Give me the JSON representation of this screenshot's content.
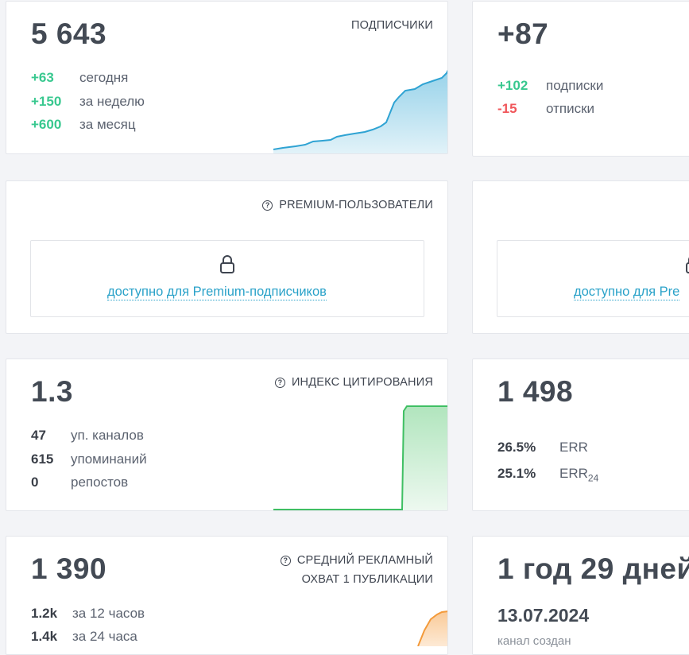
{
  "subscribers": {
    "value": "5 643",
    "title": "ПОДПИСЧИКИ",
    "rows": [
      {
        "value": "+63",
        "label": "сегодня"
      },
      {
        "value": "+150",
        "label": "за неделю"
      },
      {
        "value": "+600",
        "label": "за месяц"
      }
    ]
  },
  "daily_change": {
    "value": "+87",
    "rows": [
      {
        "value": "+102",
        "label": "подписки"
      },
      {
        "value": "-15",
        "label": "отписки"
      }
    ]
  },
  "premium_users": {
    "title": "PREMIUM-ПОЛЬЗОВАТЕЛИ",
    "locked_link": "доступно для Premium-подписчиков",
    "locked_link_partial": "доступно для Pre"
  },
  "citation": {
    "value": "1.3",
    "title": "ИНДЕКС ЦИТИРОВАНИЯ",
    "rows": [
      {
        "value": "47",
        "label": "уп. каналов"
      },
      {
        "value": "615",
        "label": "упоминаний"
      },
      {
        "value": "0",
        "label": "репостов"
      }
    ]
  },
  "engagement": {
    "value": "1 498",
    "rows": [
      {
        "value": "26.5%",
        "label": "ERR",
        "sub": ""
      },
      {
        "value": "25.1%",
        "label": "ERR",
        "sub": "24"
      }
    ]
  },
  "ad_reach": {
    "value": "1 390",
    "title_line1": "СРЕДНИЙ РЕКЛАМНЫЙ",
    "title_line2": "ОХВАТ 1 ПУБЛИКАЦИИ",
    "rows": [
      {
        "value": "1.2k",
        "label": "за 12 часов"
      },
      {
        "value": "1.4k",
        "label": "за 24 часа"
      }
    ]
  },
  "channel_age": {
    "value": "1 год 29 дней",
    "date": "13.07.2024",
    "caption": "канал создан"
  },
  "colors": {
    "positive": "#38c88f",
    "negative": "#f0565a",
    "link": "#2aa2c9",
    "subscribers_line": "#2fa3d3",
    "citation_line": "#3fbf63",
    "reach_line": "#f39a3a"
  },
  "icons": [
    "help-icon",
    "lock-icon"
  ]
}
